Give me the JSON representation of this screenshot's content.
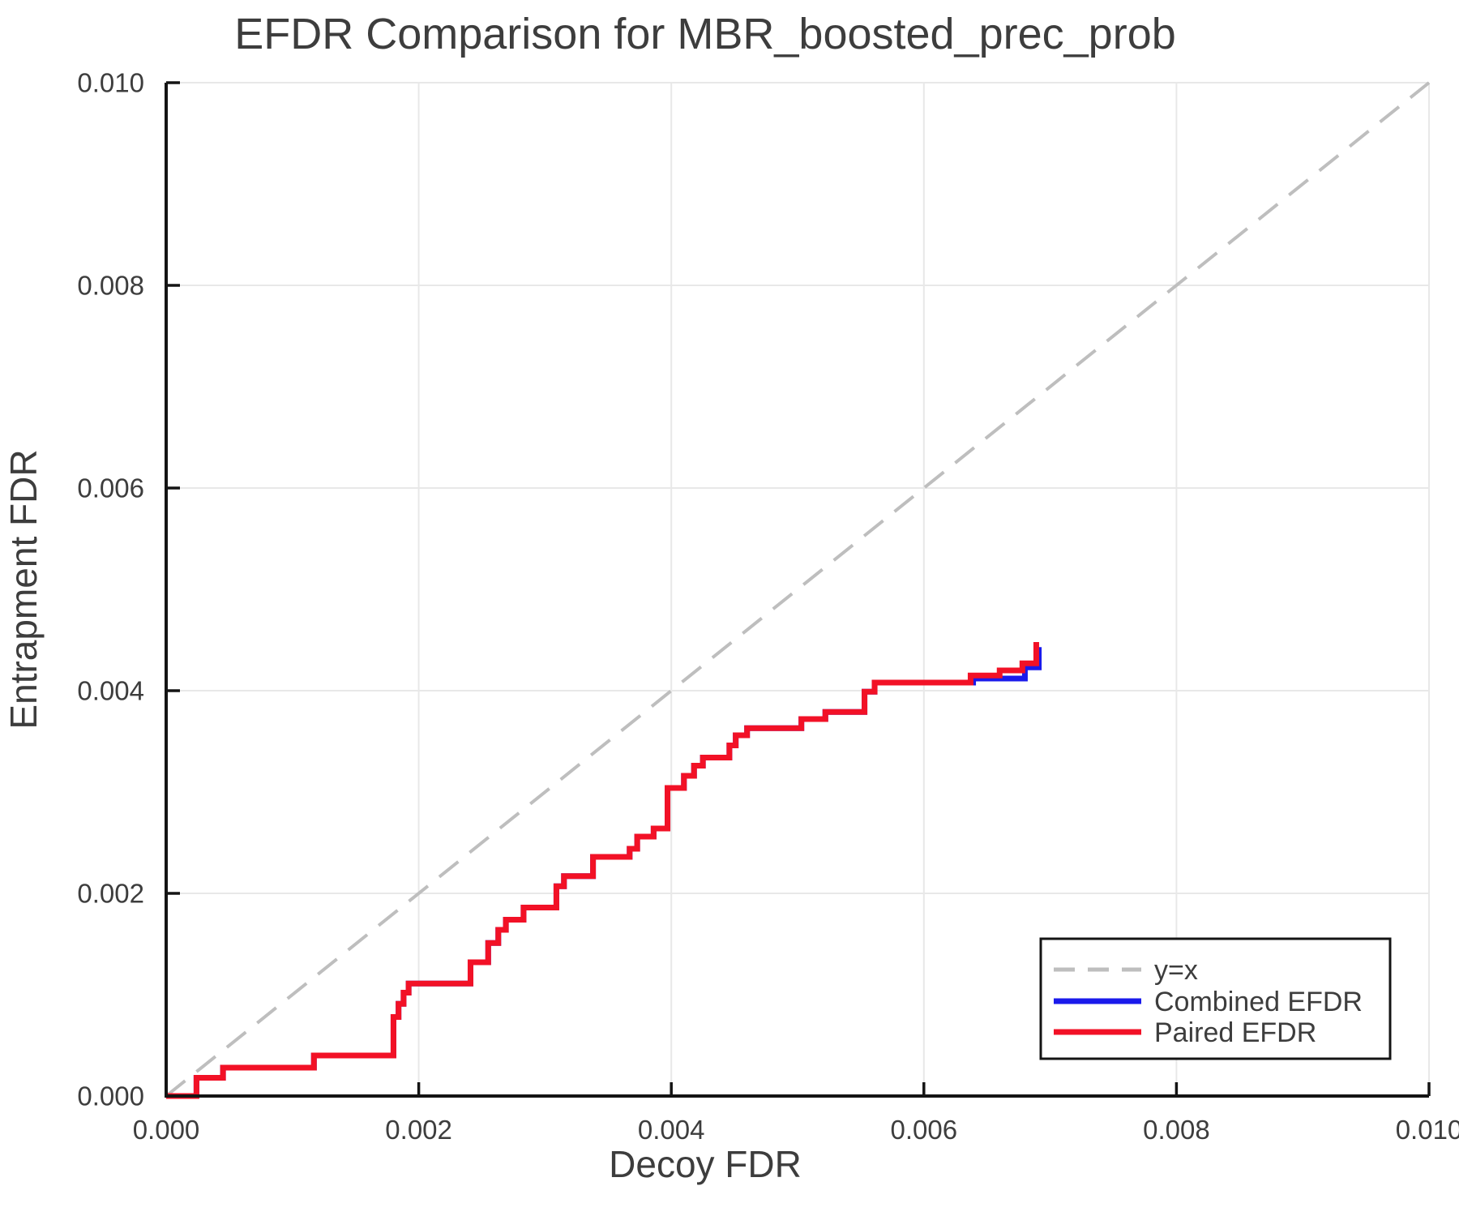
{
  "chart_data": {
    "type": "line",
    "title": "EFDR Comparison for MBR_boosted_prec_prob",
    "xlabel": "Decoy FDR",
    "ylabel": "Entrapment FDR",
    "xlim": [
      0.0,
      0.01
    ],
    "ylim": [
      0.0,
      0.01
    ],
    "x_ticks": [
      0.0,
      0.002,
      0.004,
      0.006,
      0.008,
      0.01
    ],
    "x_tick_labels": [
      "0.000",
      "0.002",
      "0.004",
      "0.006",
      "0.008",
      "0.010"
    ],
    "y_ticks": [
      0.0,
      0.002,
      0.004,
      0.006,
      0.008,
      0.01
    ],
    "y_tick_labels": [
      "0.000",
      "0.002",
      "0.004",
      "0.006",
      "0.008",
      "0.010"
    ],
    "grid": true,
    "legend_position": "lower right",
    "legend": [
      {
        "label": "y=x",
        "color": "#bebebe",
        "style": "dashed"
      },
      {
        "label": "Combined EFDR",
        "color": "#1a1aeb",
        "style": "solid"
      },
      {
        "label": "Paired EFDR",
        "color": "#f21126",
        "style": "solid"
      }
    ],
    "reference_line": {
      "name": "y=x",
      "from": [
        0.0,
        0.0
      ],
      "to": [
        0.01,
        0.01
      ]
    },
    "series": [
      {
        "name": "Combined EFDR",
        "color": "#1a1aeb",
        "type": "step",
        "start": [
          0.0,
          0.0
        ],
        "steps": [
          [
            0.00024,
            0.00018
          ],
          [
            0.00045,
            0.00028
          ],
          [
            0.00117,
            0.0004
          ],
          [
            0.0018,
            0.00078
          ],
          [
            0.00184,
            0.00091
          ],
          [
            0.00188,
            0.00102
          ],
          [
            0.00192,
            0.00111
          ],
          [
            0.00241,
            0.00132
          ],
          [
            0.00255,
            0.00151
          ],
          [
            0.00263,
            0.00164
          ],
          [
            0.00269,
            0.00174
          ],
          [
            0.00283,
            0.00186
          ],
          [
            0.00309,
            0.00207
          ],
          [
            0.00315,
            0.00217
          ],
          [
            0.00338,
            0.00236
          ],
          [
            0.00367,
            0.00244
          ],
          [
            0.00373,
            0.00256
          ],
          [
            0.00386,
            0.00264
          ],
          [
            0.00397,
            0.00304
          ],
          [
            0.0041,
            0.00316
          ],
          [
            0.00418,
            0.00326
          ],
          [
            0.00425,
            0.00334
          ],
          [
            0.00446,
            0.00346
          ],
          [
            0.00451,
            0.00356
          ],
          [
            0.0046,
            0.00363
          ],
          [
            0.00503,
            0.00372
          ],
          [
            0.00522,
            0.00379
          ],
          [
            0.00553,
            0.00399
          ],
          [
            0.00561,
            0.00408
          ],
          [
            0.00639,
            0.00412
          ],
          [
            0.0068,
            0.00423
          ],
          [
            0.00691,
            0.00443
          ]
        ]
      },
      {
        "name": "Paired EFDR",
        "color": "#f21126",
        "type": "step",
        "start": [
          0.0,
          0.0
        ],
        "steps": [
          [
            0.00024,
            0.00018
          ],
          [
            0.00045,
            0.00028
          ],
          [
            0.00117,
            0.0004
          ],
          [
            0.0018,
            0.00078
          ],
          [
            0.00184,
            0.00091
          ],
          [
            0.00188,
            0.00102
          ],
          [
            0.00192,
            0.00111
          ],
          [
            0.00241,
            0.00132
          ],
          [
            0.00255,
            0.00151
          ],
          [
            0.00263,
            0.00164
          ],
          [
            0.00269,
            0.00174
          ],
          [
            0.00283,
            0.00186
          ],
          [
            0.00309,
            0.00207
          ],
          [
            0.00315,
            0.00217
          ],
          [
            0.00338,
            0.00236
          ],
          [
            0.00367,
            0.00244
          ],
          [
            0.00373,
            0.00256
          ],
          [
            0.00386,
            0.00264
          ],
          [
            0.00397,
            0.00304
          ],
          [
            0.0041,
            0.00316
          ],
          [
            0.00418,
            0.00326
          ],
          [
            0.00425,
            0.00334
          ],
          [
            0.00446,
            0.00346
          ],
          [
            0.00451,
            0.00356
          ],
          [
            0.0046,
            0.00363
          ],
          [
            0.00503,
            0.00372
          ],
          [
            0.00522,
            0.00379
          ],
          [
            0.00553,
            0.00399
          ],
          [
            0.00561,
            0.00408
          ],
          [
            0.00637,
            0.00415
          ],
          [
            0.0066,
            0.0042
          ],
          [
            0.00678,
            0.00427
          ],
          [
            0.00689,
            0.00448
          ]
        ]
      }
    ],
    "style": {
      "grid_color": "#e8e8e8",
      "spine_color": "#141414",
      "text_color": "#3d3d3d",
      "series_stroke_width": 7,
      "reference_stroke_width": 4,
      "background": "#ffffff"
    }
  }
}
